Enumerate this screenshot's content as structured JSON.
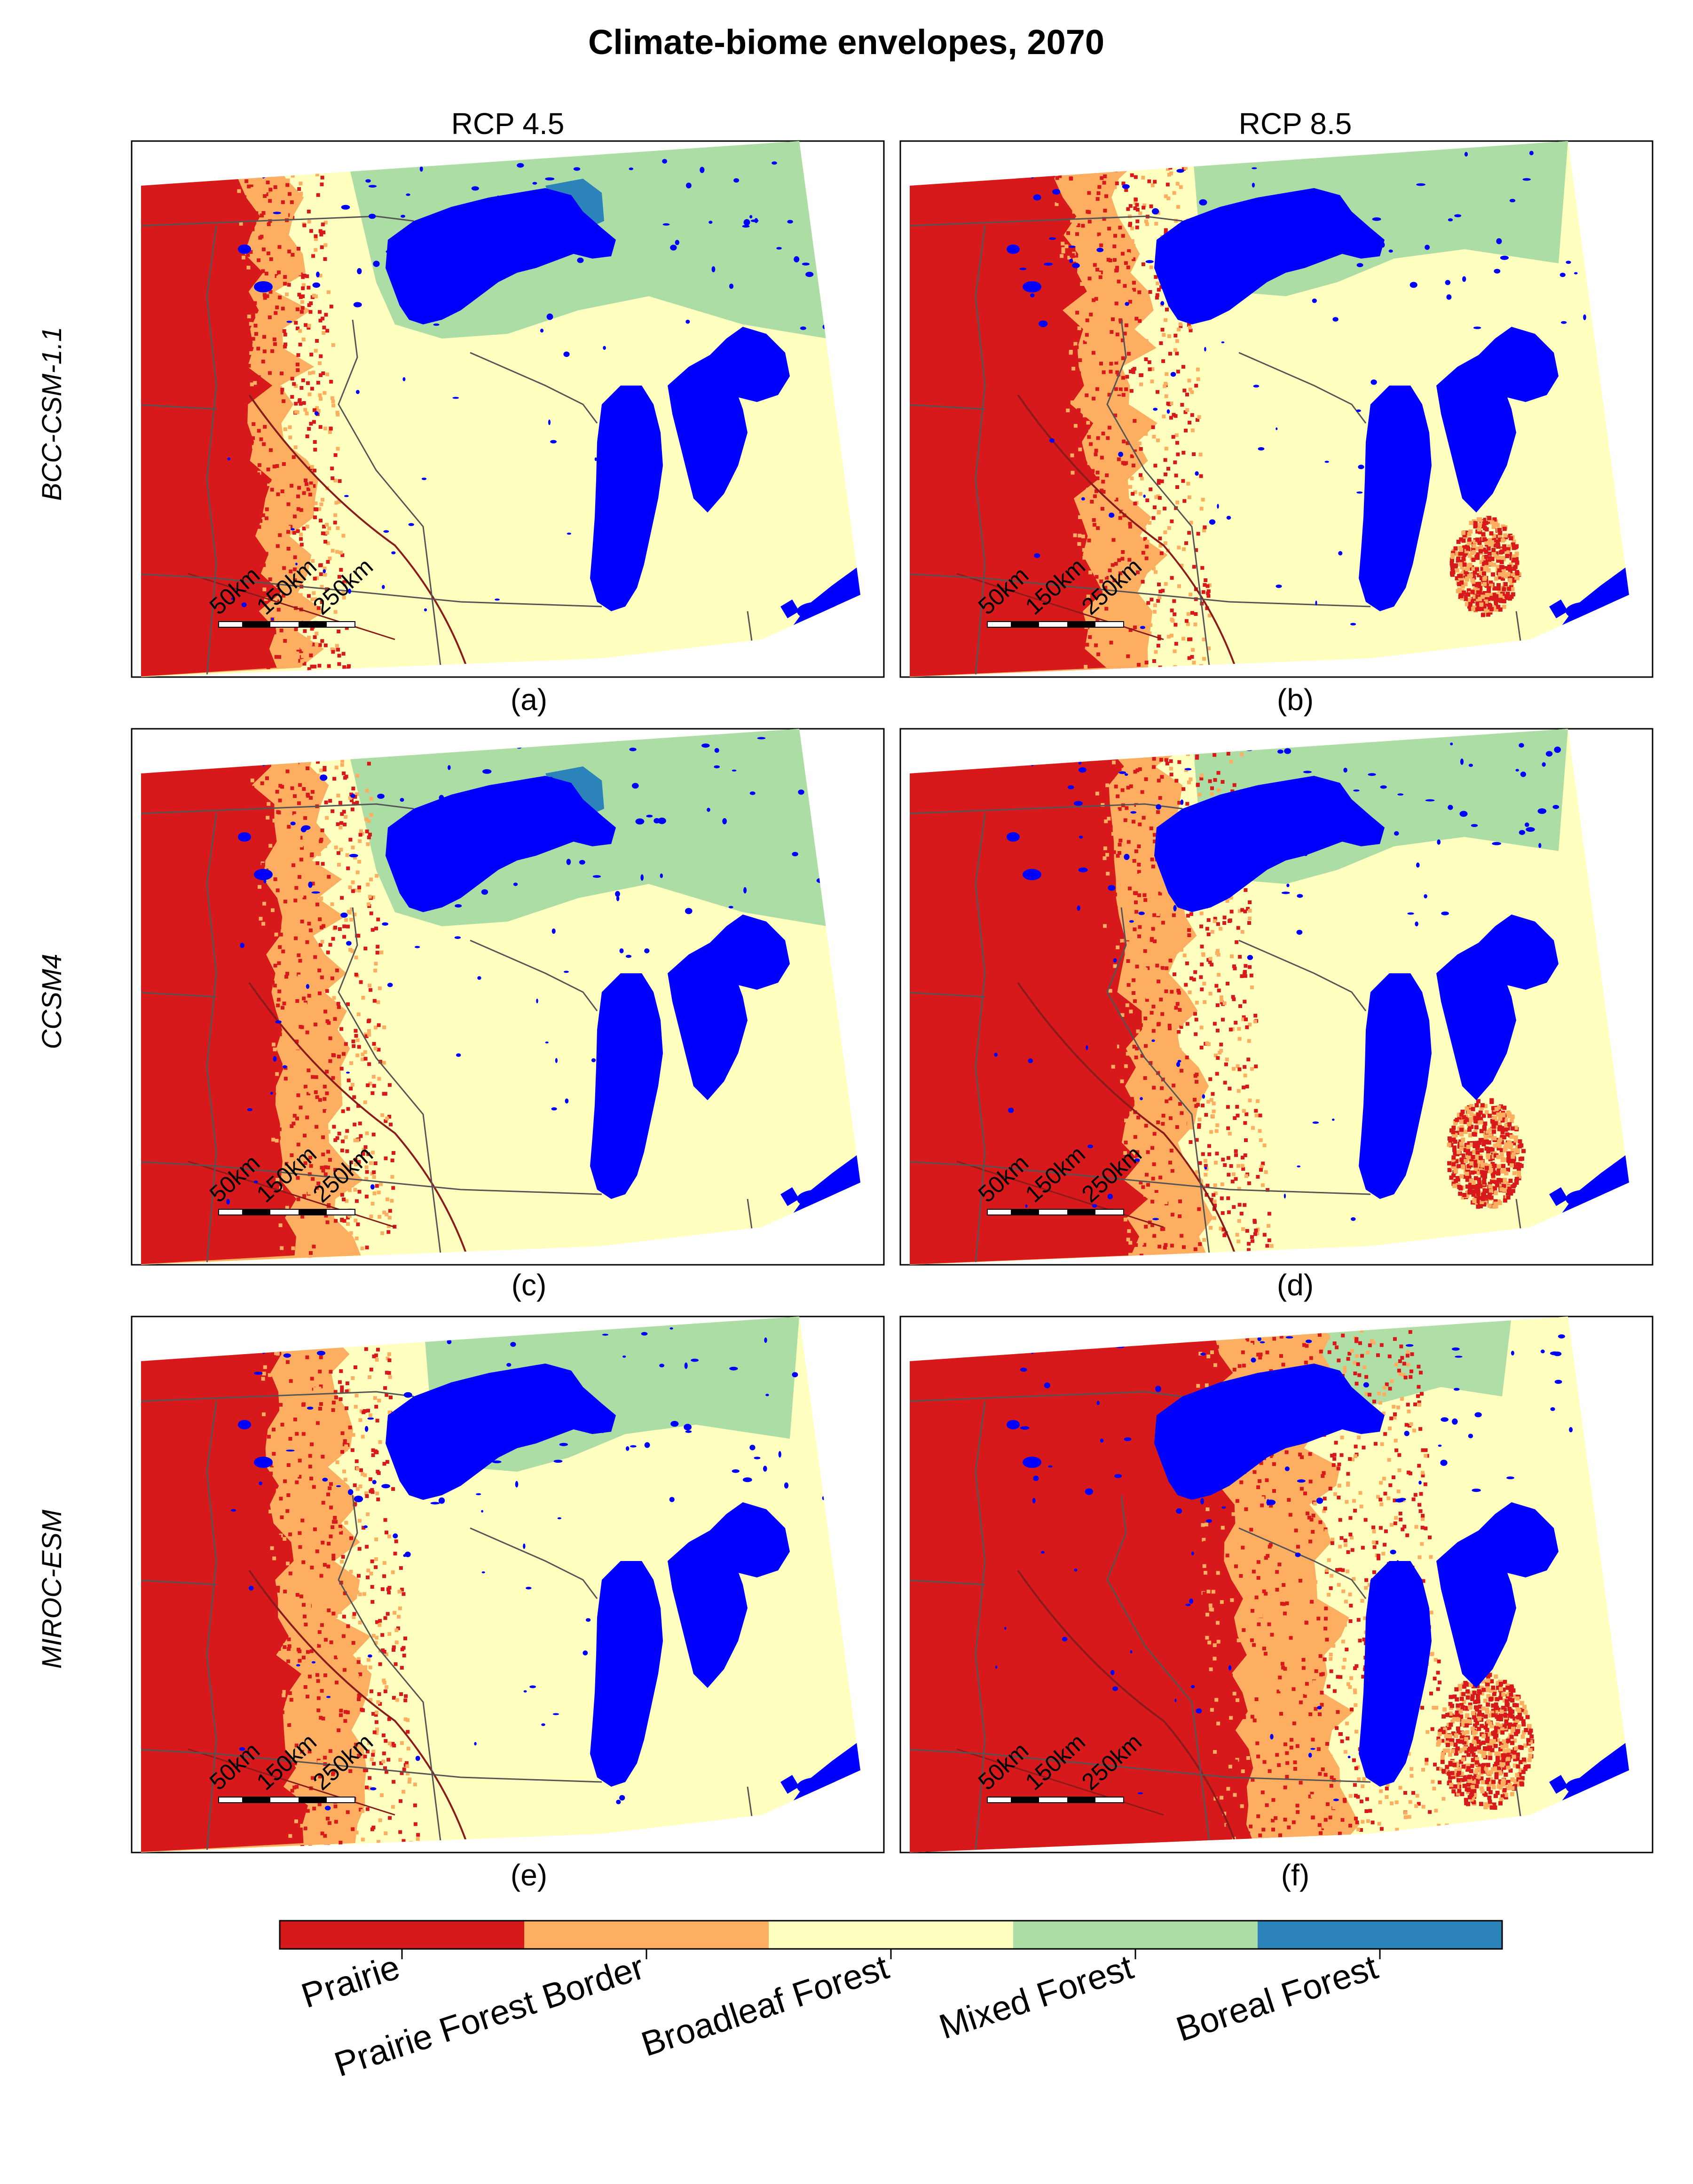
{
  "figure": {
    "title": "Climate-biome envelopes, 2070",
    "columns": [
      "RCP 4.5",
      "RCP 8.5"
    ],
    "rows": [
      "BCC-CSM-1.1",
      "CCSM4",
      "MIROC-ESM"
    ],
    "panels": [
      {
        "label": "(a)",
        "model": "BCC-CSM-1.1",
        "scenario": "RCP 4.5",
        "prairie_extent": 0.15,
        "border_extent": 0.2,
        "mixed": "strong",
        "boreal": true
      },
      {
        "label": "(b)",
        "model": "BCC-CSM-1.1",
        "scenario": "RCP 8.5",
        "prairie_extent": 0.22,
        "border_extent": 0.3,
        "mixed": "medium",
        "boreal": false
      },
      {
        "label": "(c)",
        "model": "CCSM4",
        "scenario": "RCP 4.5",
        "prairie_extent": 0.17,
        "border_extent": 0.25,
        "mixed": "strong",
        "boreal": true
      },
      {
        "label": "(d)",
        "model": "CCSM4",
        "scenario": "RCP 8.5",
        "prairie_extent": 0.28,
        "border_extent": 0.36,
        "mixed": "medium",
        "boreal": false
      },
      {
        "label": "(e)",
        "model": "MIROC-ESM",
        "scenario": "RCP 4.5",
        "prairie_extent": 0.18,
        "border_extent": 0.27,
        "mixed": "medium",
        "boreal": false
      },
      {
        "label": "(f)",
        "model": "MIROC-ESM",
        "scenario": "RCP 8.5",
        "prairie_extent": 0.42,
        "border_extent": 0.55,
        "mixed": "weak",
        "boreal": false
      }
    ],
    "scale_bar": {
      "labels": [
        "50km",
        "150km",
        "250km"
      ]
    },
    "legend": {
      "categories": [
        {
          "name": "Prairie",
          "color": "#d7191c"
        },
        {
          "name": "Prairie Forest Border",
          "color": "#fdae61"
        },
        {
          "name": "Broadleaf Forest",
          "color": "#ffffbf"
        },
        {
          "name": "Mixed Forest",
          "color": "#abdda4"
        },
        {
          "name": "Boreal Forest",
          "color": "#2b83ba"
        }
      ]
    },
    "colors": {
      "water": "#0000ff",
      "prairie": "#d7191c",
      "border": "#fdae61",
      "broadleaf": "#ffffbf",
      "mixed": "#abdda4",
      "boreal": "#2b83ba",
      "boundary": "#555555",
      "river": "#8b1a1a"
    }
  }
}
